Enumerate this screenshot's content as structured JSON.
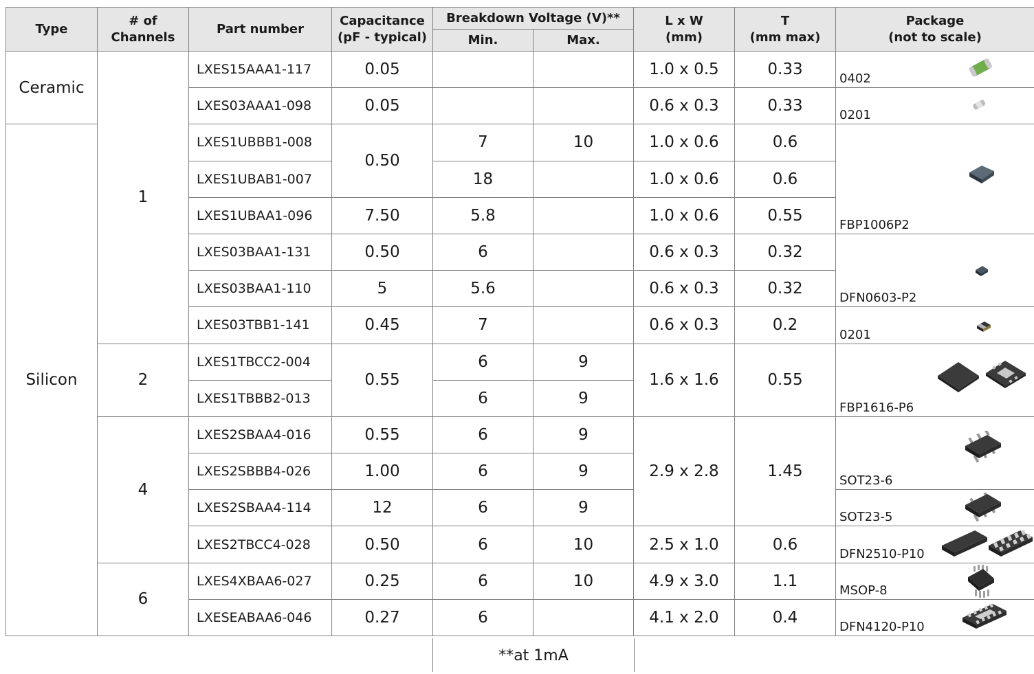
{
  "headers": {
    "type": "Type",
    "channels_1": "# of",
    "channels_2": "Channels",
    "part": "Part number",
    "cap_1": "Capacitance",
    "cap_2": "(pF - typical)",
    "bv": "Breakdown Voltage (V)**",
    "bv_min": "Min.",
    "bv_max": "Max.",
    "lw_1": "L x W",
    "lw_2": "(mm)",
    "t_1": "T",
    "t_2": "(mm max)",
    "pkg_1": "Package",
    "pkg_2": "(not to scale)"
  },
  "groups": {
    "ceramic": "Ceramic",
    "silicon": "Silicon",
    "ch1": "1",
    "ch2": "2",
    "ch4": "4",
    "ch6": "6"
  },
  "rows": [
    {
      "part": "LXES15AAA1-117",
      "cap": "0.05",
      "min": "",
      "max": "",
      "lw": "1.0 x 0.5",
      "t": "0.33",
      "pkg": "0402"
    },
    {
      "part": "LXES03AAA1-098",
      "cap": "0.05",
      "min": "",
      "max": "",
      "lw": "0.6 x 0.3",
      "t": "0.33",
      "pkg": "0201"
    },
    {
      "part": "LXES1UBBB1-008",
      "cap": "0.50",
      "min": "7",
      "max": "10",
      "lw": "1.0 x 0.6",
      "t": "0.6",
      "pkg": "FBP1006P2"
    },
    {
      "part": "LXES1UBAB1-007",
      "cap": "",
      "min": "18",
      "max": "",
      "lw": "1.0 x 0.6",
      "t": "0.6",
      "pkg": ""
    },
    {
      "part": "LXES1UBAA1-096",
      "cap": "7.50",
      "min": "5.8",
      "max": "",
      "lw": "1.0 x 0.6",
      "t": "0.55",
      "pkg": ""
    },
    {
      "part": "LXES03BAA1-131",
      "cap": "0.50",
      "min": "6",
      "max": "",
      "lw": "0.6 x 0.3",
      "t": "0.32",
      "pkg": "DFN0603-P2"
    },
    {
      "part": "LXES03BAA1-110",
      "cap": "5",
      "min": "5.6",
      "max": "",
      "lw": "0.6 x 0.3",
      "t": "0.32",
      "pkg": ""
    },
    {
      "part": "LXES03TBB1-141",
      "cap": "0.45",
      "min": "7",
      "max": "",
      "lw": "0.6 x 0.3",
      "t": "0.2",
      "pkg": "0201"
    },
    {
      "part": "LXES1TBCC2-004",
      "cap": "0.55",
      "min": "6",
      "max": "9",
      "lw": "1.6 x 1.6",
      "t": "0.55",
      "pkg": "FBP1616-P6"
    },
    {
      "part": "LXES1TBBB2-013",
      "cap": "",
      "min": "6",
      "max": "9",
      "lw": "",
      "t": "",
      "pkg": ""
    },
    {
      "part": "LXES2SBAA4-016",
      "cap": "0.55",
      "min": "6",
      "max": "9",
      "lw": "2.9 x 2.8",
      "t": "1.45",
      "pkg": "SOT23-6"
    },
    {
      "part": "LXES2SBBB4-026",
      "cap": "1.00",
      "min": "6",
      "max": "9",
      "lw": "",
      "t": "",
      "pkg": ""
    },
    {
      "part": "LXES2SBAA4-114",
      "cap": "12",
      "min": "6",
      "max": "9",
      "lw": "",
      "t": "",
      "pkg": "SOT23-5"
    },
    {
      "part": "LXES2TBCC4-028",
      "cap": "0.50",
      "min": "6",
      "max": "10",
      "lw": "2.5 x 1.0",
      "t": "0.6",
      "pkg": "DFN2510-P10"
    },
    {
      "part": "LXES4XBAA6-027",
      "cap": "0.25",
      "min": "6",
      "max": "10",
      "lw": "4.9 x 3.0",
      "t": "1.1",
      "pkg": "MSOP-8"
    },
    {
      "part": "LXESEABAA6-046",
      "cap": "0.27",
      "min": "6",
      "max": "",
      "lw": "4.1 x 2.0",
      "t": "0.4",
      "pkg": "DFN4120-P10"
    }
  ],
  "footnote": "**at 1mA"
}
